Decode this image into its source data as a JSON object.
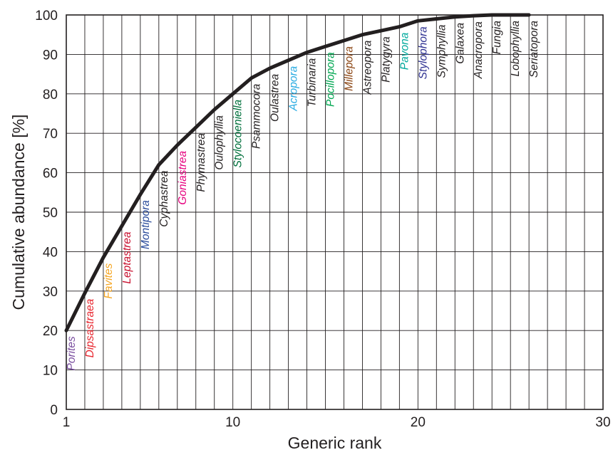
{
  "chart_data": {
    "type": "line",
    "title": "",
    "xlabel": "Generic rank",
    "ylabel": "Cumulative abundance [%]",
    "xlim": [
      1,
      30
    ],
    "ylim": [
      0,
      100
    ],
    "xticks": [
      1,
      10,
      20,
      30
    ],
    "yticks": [
      0,
      10,
      20,
      30,
      40,
      50,
      60,
      70,
      80,
      90,
      100
    ],
    "grid": true,
    "series": [
      {
        "x": [
          1,
          2,
          3,
          4,
          5,
          6,
          7,
          8,
          9,
          10,
          11,
          12,
          13,
          14,
          15,
          16,
          17,
          18,
          19,
          20,
          21,
          22,
          23,
          24,
          25,
          26
        ],
        "y": [
          20,
          29.5,
          38.5,
          46.5,
          54.5,
          62,
          67,
          71.5,
          76,
          80,
          84,
          86.5,
          88.5,
          90.5,
          92,
          93.5,
          95,
          96,
          97,
          98.5,
          99,
          99.5,
          99.8,
          100,
          100,
          100
        ]
      }
    ],
    "annotations": [
      {
        "rank": 1,
        "text": "Porites",
        "color": "#7b4fa0"
      },
      {
        "rank": 2,
        "text": "Dipsastraea",
        "color": "#e8262e"
      },
      {
        "rank": 3,
        "text": "Favites",
        "color": "#f5a623"
      },
      {
        "rank": 4,
        "text": "Leptastrea",
        "color": "#c8102e"
      },
      {
        "rank": 5,
        "text": "Montipora",
        "color": "#2a4b9b"
      },
      {
        "rank": 6,
        "text": "Cyphastrea",
        "color": "#231f20"
      },
      {
        "rank": 7,
        "text": "Goniastrea",
        "color": "#e6007e"
      },
      {
        "rank": 8,
        "text": "Phymastrea",
        "color": "#231f20"
      },
      {
        "rank": 9,
        "text": "Oulophyllia",
        "color": "#231f20"
      },
      {
        "rank": 10,
        "text": "Stylocoeniella",
        "color": "#00703c"
      },
      {
        "rank": 11,
        "text": "Psammocora",
        "color": "#231f20"
      },
      {
        "rank": 12,
        "text": "Oulastrea",
        "color": "#231f20"
      },
      {
        "rank": 13,
        "text": "Acropora",
        "color": "#29abe2"
      },
      {
        "rank": 14,
        "text": "Turbinaria",
        "color": "#231f20"
      },
      {
        "rank": 15,
        "text": "Pocillopora",
        "color": "#00a651"
      },
      {
        "rank": 16,
        "text": "Millepora",
        "color": "#8b4513"
      },
      {
        "rank": 17,
        "text": "Astreopora",
        "color": "#231f20"
      },
      {
        "rank": 18,
        "text": "Platygyra",
        "color": "#231f20"
      },
      {
        "rank": 19,
        "text": "Pavona",
        "color": "#00a99d"
      },
      {
        "rank": 20,
        "text": "Stylophora",
        "color": "#2e3192"
      },
      {
        "rank": 21,
        "text": "Symphyllia",
        "color": "#231f20"
      },
      {
        "rank": 22,
        "text": "Galaxea",
        "color": "#231f20"
      },
      {
        "rank": 23,
        "text": "Anacropora",
        "color": "#231f20"
      },
      {
        "rank": 24,
        "text": "Fungia",
        "color": "#231f20"
      },
      {
        "rank": 25,
        "text": "Lobophyllia",
        "color": "#231f20"
      },
      {
        "rank": 26,
        "text": "Seriatopora",
        "color": "#231f20"
      }
    ],
    "line_color": "#231f20",
    "grid_color": "#231f20"
  }
}
